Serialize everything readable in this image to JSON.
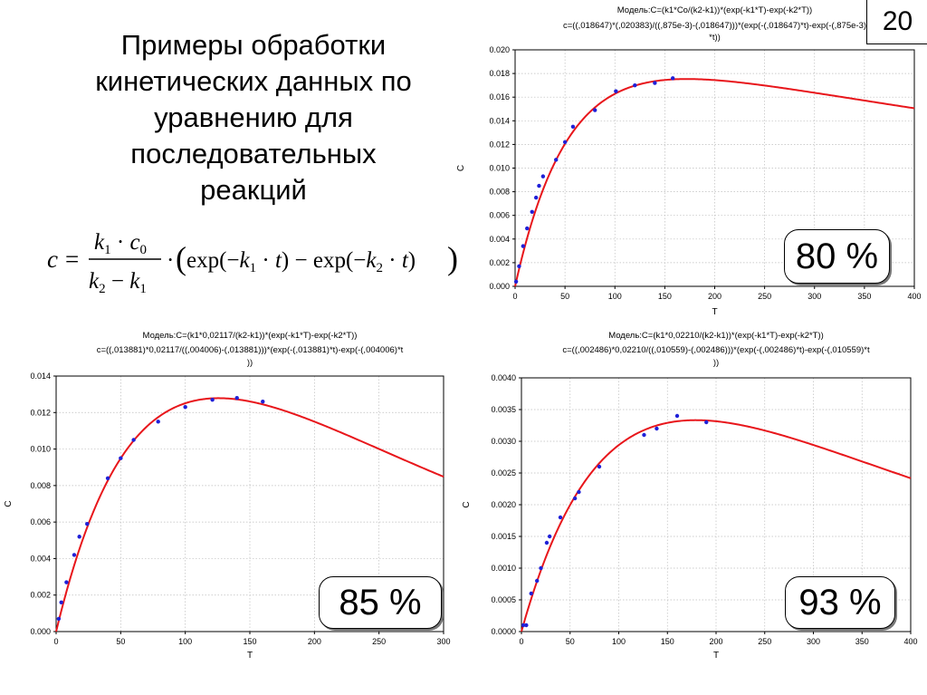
{
  "slide": {
    "number": "20",
    "title_lines": [
      "Примеры обработки",
      "кинетических данных по",
      "уравнению для",
      "последовательных",
      "реакций"
    ]
  },
  "chart_data": [
    {
      "type": "scatter",
      "title": "Модель:C=(k1*Co/(k2-k1))*(exp(-k1*T)-exp(-k2*T))",
      "subtitle": "c=((,018647)*(,020383)/((,875e-3)-(,018647)))*(exp(-(,018647)*t)-exp(-(,875e-3)*t))",
      "xlabel": "T",
      "ylabel": "C",
      "xlim": [
        0,
        400
      ],
      "ylim": [
        0,
        0.02
      ],
      "xticks": [
        "0",
        "50",
        "100",
        "150",
        "200",
        "250",
        "300",
        "350",
        "400"
      ],
      "yticks": [
        "0.000",
        "0.002",
        "0.004",
        "0.006",
        "0.008",
        "0.010",
        "0.012",
        "0.014",
        "0.016",
        "0.018",
        "0.020"
      ],
      "grid": true,
      "badge": "80 %",
      "fit": {
        "k1": 0.018647,
        "k2": 0.000875,
        "c0": 0.020383,
        "color": "#e8161b"
      },
      "points": {
        "color": "#1f20d8",
        "x": [
          1,
          4,
          8,
          12,
          17,
          21,
          24,
          28,
          41,
          50,
          58,
          80,
          101,
          120,
          140,
          158
        ],
        "y": [
          0.0004,
          0.0017,
          0.0034,
          0.0049,
          0.0063,
          0.0075,
          0.0085,
          0.0093,
          0.0107,
          0.0122,
          0.0135,
          0.0149,
          0.0165,
          0.017,
          0.0172,
          0.0176
        ]
      }
    },
    {
      "type": "scatter",
      "title": "Модель:C=(k1*0,02117/(k2-k1))*(exp(-k1*T)-exp(-k2*T))",
      "subtitle": "c=((,013881)*0,02117/((,004006)-(,013881)))*(exp(-(,013881)*t)-exp(-(,004006)*t))",
      "xlabel": "T",
      "ylabel": "C",
      "xlim": [
        0,
        300
      ],
      "ylim": [
        0,
        0.014
      ],
      "xticks": [
        "0",
        "50",
        "100",
        "150",
        "200",
        "250",
        "300"
      ],
      "yticks": [
        "0.000",
        "0.002",
        "0.004",
        "0.006",
        "0.008",
        "0.010",
        "0.012",
        "0.014"
      ],
      "grid": true,
      "badge": "85 %",
      "fit": {
        "k1": 0.013881,
        "k2": 0.004006,
        "c0": 0.02117,
        "color": "#e8161b"
      },
      "points": {
        "color": "#1f20d8",
        "x": [
          2,
          4,
          8,
          14,
          18,
          24,
          40,
          50,
          60,
          79,
          100,
          121,
          140,
          160
        ],
        "y": [
          0.0007,
          0.0016,
          0.0027,
          0.0042,
          0.0052,
          0.0059,
          0.0084,
          0.0095,
          0.0105,
          0.0115,
          0.0123,
          0.0127,
          0.0128,
          0.0126
        ]
      }
    },
    {
      "type": "scatter",
      "title": "Модель:C=(k1*0,02210/(k2-k1))*(exp(-k1*T)-exp(-k2*T))",
      "subtitle": "c=((,002486)*0,02210/((,010559)-(,002486)))*(exp(-(,002486)*t)-exp(-(,010559)*t))",
      "xlabel": "T",
      "ylabel": "C",
      "xlim": [
        0,
        400
      ],
      "ylim": [
        0,
        0.004
      ],
      "xticks": [
        "0",
        "50",
        "100",
        "150",
        "200",
        "250",
        "300",
        "350",
        "400"
      ],
      "yticks": [
        "0.0000",
        "0.0005",
        "0.0010",
        "0.0015",
        "0.0020",
        "0.0025",
        "0.0030",
        "0.0035",
        "0.0040"
      ],
      "grid": true,
      "badge": "93 %",
      "fit": {
        "k1": 0.002486,
        "k2": 0.010559,
        "c0": 0.0221,
        "color": "#e8161b"
      },
      "points": {
        "color": "#1f20d8",
        "x": [
          2,
          5,
          10,
          16,
          20,
          26,
          29,
          40,
          55,
          59,
          80,
          126,
          139,
          160,
          190
        ],
        "y": [
          0.0001,
          0.0001,
          0.0006,
          0.0008,
          0.001,
          0.0014,
          0.0015,
          0.0018,
          0.0021,
          0.0022,
          0.0026,
          0.0031,
          0.0032,
          0.0034,
          0.0033
        ]
      }
    }
  ]
}
